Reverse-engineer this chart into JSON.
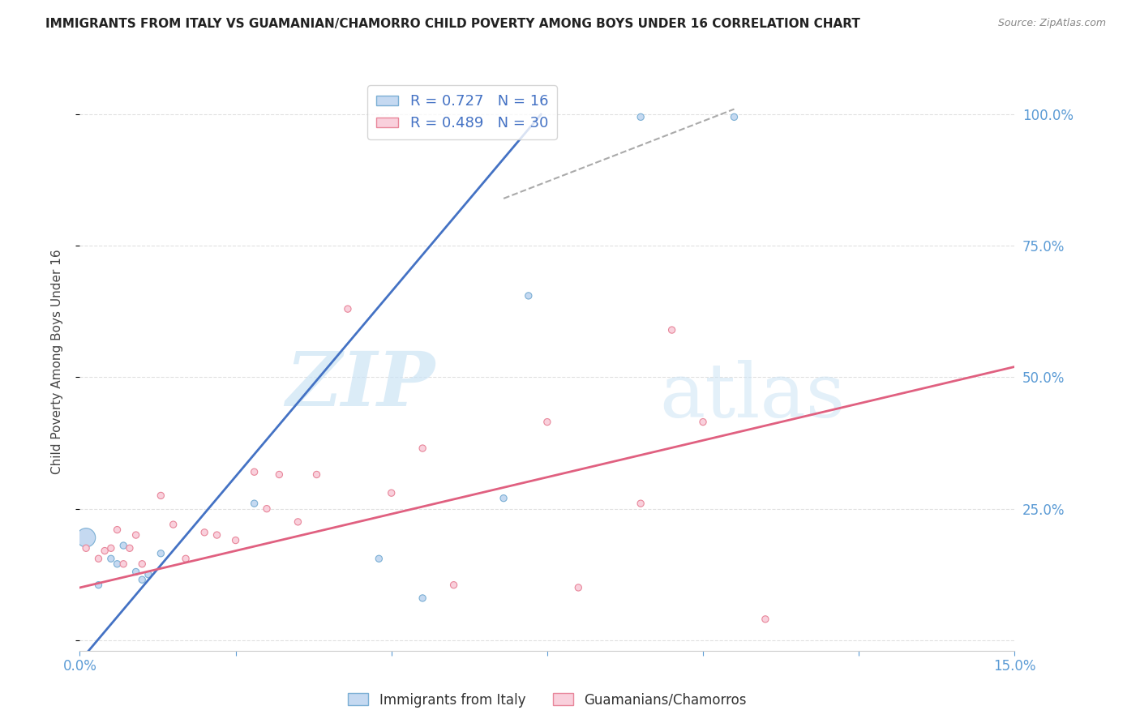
{
  "title": "IMMIGRANTS FROM ITALY VS GUAMANIAN/CHAMORRO CHILD POVERTY AMONG BOYS UNDER 16 CORRELATION CHART",
  "source": "Source: ZipAtlas.com",
  "ylabel": "Child Poverty Among Boys Under 16",
  "xlim": [
    0.0,
    0.15
  ],
  "ylim": [
    -0.02,
    1.08
  ],
  "y_ticks": [
    0.0,
    0.25,
    0.5,
    0.75,
    1.0
  ],
  "y_tick_labels": [
    "",
    "25.0%",
    "50.0%",
    "75.0%",
    "100.0%"
  ],
  "grid_color": "#e0e0e0",
  "background_color": "#ffffff",
  "italy_color": "#c5d9f1",
  "italy_edge_color": "#7bafd4",
  "chamorro_color": "#f9d0dc",
  "chamorro_edge_color": "#e8869a",
  "italy_line_color": "#4472c4",
  "chamorro_line_color": "#e06080",
  "label_color": "#5b9bd5",
  "italy_R": 0.727,
  "italy_N": 16,
  "chamorro_R": 0.489,
  "chamorro_N": 30,
  "watermark_zip": "ZIP",
  "watermark_atlas": "atlas",
  "italy_x": [
    0.001,
    0.003,
    0.005,
    0.006,
    0.007,
    0.009,
    0.01,
    0.011,
    0.013,
    0.028,
    0.048,
    0.055,
    0.068,
    0.072,
    0.09,
    0.105
  ],
  "italy_y": [
    0.195,
    0.105,
    0.155,
    0.145,
    0.18,
    0.13,
    0.115,
    0.125,
    0.165,
    0.26,
    0.155,
    0.08,
    0.27,
    0.655,
    0.995,
    0.995
  ],
  "italy_size": [
    280,
    35,
    35,
    35,
    35,
    35,
    35,
    35,
    35,
    35,
    35,
    35,
    35,
    35,
    35,
    35
  ],
  "chamorro_x": [
    0.001,
    0.003,
    0.004,
    0.005,
    0.006,
    0.007,
    0.008,
    0.009,
    0.01,
    0.013,
    0.015,
    0.017,
    0.02,
    0.022,
    0.025,
    0.028,
    0.03,
    0.032,
    0.035,
    0.038,
    0.043,
    0.05,
    0.055,
    0.06,
    0.075,
    0.08,
    0.09,
    0.095,
    0.1,
    0.11
  ],
  "chamorro_y": [
    0.175,
    0.155,
    0.17,
    0.175,
    0.21,
    0.145,
    0.175,
    0.2,
    0.145,
    0.275,
    0.22,
    0.155,
    0.205,
    0.2,
    0.19,
    0.32,
    0.25,
    0.315,
    0.225,
    0.315,
    0.63,
    0.28,
    0.365,
    0.105,
    0.415,
    0.1,
    0.26,
    0.59,
    0.415,
    0.04
  ],
  "chamorro_size": [
    35,
    35,
    35,
    35,
    35,
    35,
    35,
    35,
    35,
    35,
    35,
    35,
    35,
    35,
    35,
    35,
    35,
    35,
    35,
    35,
    35,
    35,
    35,
    35,
    35,
    35,
    35,
    35,
    35,
    35
  ],
  "italy_line_x0": 0.0,
  "italy_line_y0": -0.04,
  "italy_line_x1": 0.074,
  "italy_line_y1": 1.0,
  "chamorro_line_x0": 0.0,
  "chamorro_line_y0": 0.1,
  "chamorro_line_x1": 0.15,
  "chamorro_line_y1": 0.52,
  "dash_line_x0": 0.068,
  "dash_line_y0": 0.84,
  "dash_line_x1": 0.105,
  "dash_line_y1": 1.01
}
